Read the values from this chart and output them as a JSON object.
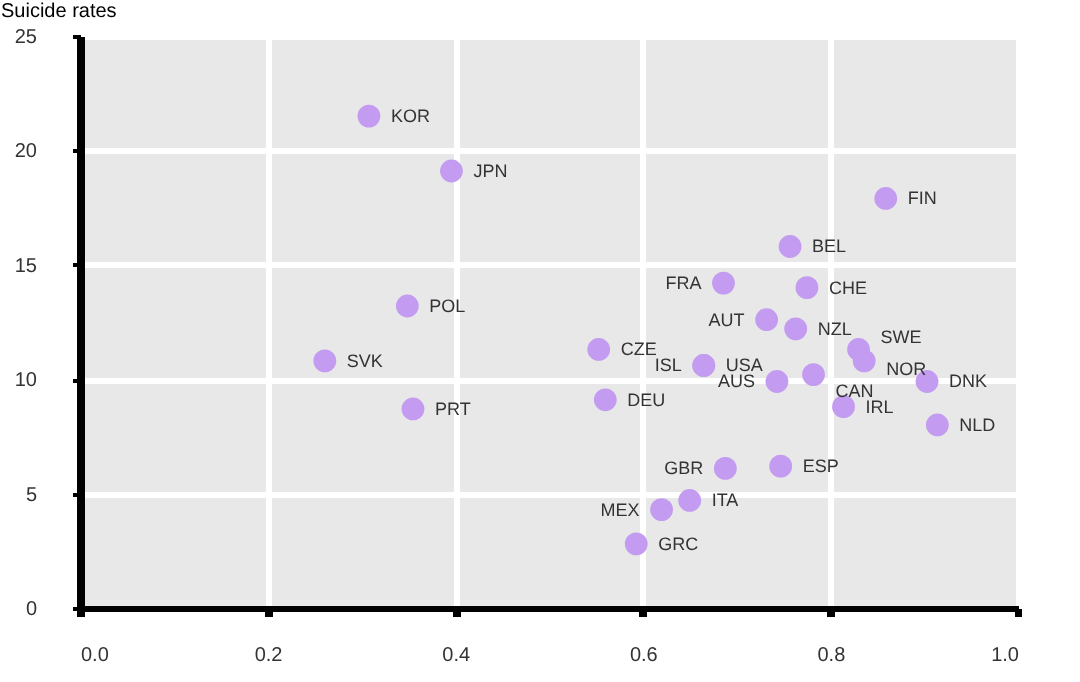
{
  "chart_data": {
    "type": "scatter",
    "ylabel": "Suicide rates",
    "xlim": [
      0,
      1
    ],
    "ylim": [
      0,
      25
    ],
    "xticks": [
      {
        "value": 0,
        "label": "0.0"
      },
      0.2,
      0.4,
      0.6,
      0.8,
      {
        "value": 1,
        "label": "1.0"
      }
    ],
    "yticks": [
      0,
      5,
      10,
      15,
      20,
      25
    ],
    "grid": true,
    "marker": "circle",
    "series": [
      {
        "color": "#c39bf0",
        "x": [
          0.308,
          0.396,
          0.349,
          0.261,
          0.355,
          0.859,
          0.757,
          0.686,
          0.775,
          0.732,
          0.763,
          0.553,
          0.665,
          0.665,
          0.83,
          0.836,
          0.782,
          0.743,
          0.903,
          0.56,
          0.814,
          0.914,
          0.747,
          0.688,
          0.65,
          0.62,
          0.593
        ],
        "values": [
          21.5,
          19.1,
          13.2,
          10.8,
          8.7,
          17.9,
          15.8,
          14.2,
          14.0,
          12.6,
          12.2,
          11.3,
          10.6,
          10.6,
          11.3,
          10.8,
          10.2,
          9.9,
          9.9,
          9.1,
          8.8,
          8.0,
          6.2,
          6.1,
          4.7,
          4.3,
          2.8
        ],
        "value_labels": [
          "KOR",
          "JPN",
          "POL",
          "SVK",
          "PRT",
          "FIN",
          "BEL",
          "FRA",
          "CHE",
          "AUT",
          "NZL",
          "CZE",
          "ISL",
          "USA",
          "SWE",
          "NOR",
          "CAN",
          "AUS",
          "DNK",
          "DEU",
          "IRL",
          "NLD",
          "ESP",
          "GBR",
          "ITA",
          "MEX",
          "GRC"
        ]
      }
    ]
  }
}
